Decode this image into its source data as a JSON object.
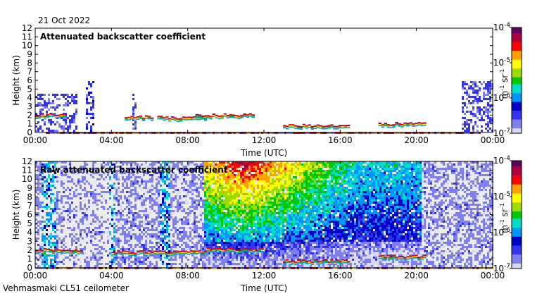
{
  "date": "21 Oct 2022",
  "footer": "Vehmasmaki CL51 ceilometer",
  "colors": {
    "scale": [
      "#ececec",
      "#d8d8f0",
      "#7f7ff2",
      "#3333e8",
      "#0000c8",
      "#0095ff",
      "#00ddc8",
      "#00c800",
      "#9cdc00",
      "#ffff00",
      "#ffa000",
      "#ff0000",
      "#b0003c",
      "#600060"
    ],
    "axis": "#000000"
  },
  "chart_data": [
    {
      "type": "heatmap",
      "title": "Attenuated backscatter coefficient",
      "xlabel": "Time (UTC)",
      "ylabel": "Height (km)",
      "xlim": [
        0,
        24
      ],
      "ylim": [
        0,
        12
      ],
      "x_ticks": [
        "00:00",
        "04:00",
        "08:00",
        "12:00",
        "16:00",
        "20:00",
        "00:00"
      ],
      "y_ticks": [
        "0",
        "1",
        "2",
        "3",
        "4",
        "5",
        "6",
        "7",
        "8",
        "9",
        "10",
        "11",
        "12"
      ],
      "colorbar": {
        "label_base": "m",
        "label_exp1": "-1",
        "label_mid": " sr",
        "label_exp2": "-1",
        "scale": "log",
        "range": [
          1e-07,
          0.0001
        ],
        "tick_bases": [
          "10",
          "10",
          "10",
          "10"
        ],
        "tick_exps": [
          "-7",
          "-6",
          "-5",
          "-4"
        ]
      },
      "features": [
        {
          "name": "cloud layer",
          "t_start": 0.0,
          "t_end": 1.6,
          "height_km": 1.9
        },
        {
          "name": "cloud layer",
          "t_start": 4.7,
          "t_end": 6.2,
          "height_km": 1.7
        },
        {
          "name": "cloud layer",
          "t_start": 6.4,
          "t_end": 9.0,
          "height_km": 1.6
        },
        {
          "name": "cloud layer",
          "t_start": 8.4,
          "t_end": 11.5,
          "height_km": 1.9
        },
        {
          "name": "cloud layer",
          "t_start": 13.0,
          "t_end": 16.5,
          "height_km": 0.7
        },
        {
          "name": "cloud layer",
          "t_start": 18.0,
          "t_end": 20.5,
          "height_km": 0.9
        }
      ]
    },
    {
      "type": "heatmap",
      "title": "Raw attenuated backscatter coefficient",
      "xlabel": "Time (UTC)",
      "ylabel": "Height (km)",
      "xlim": [
        0,
        24
      ],
      "ylim": [
        0,
        12
      ],
      "x_ticks": [
        "00:00",
        "04:00",
        "08:00",
        "12:00",
        "16:00",
        "20:00",
        "00:00"
      ],
      "y_ticks": [
        "0",
        "1",
        "2",
        "3",
        "4",
        "5",
        "6",
        "7",
        "8",
        "9",
        "10",
        "11",
        "12"
      ],
      "colorbar": {
        "label_base": "m",
        "label_exp1": "-1",
        "label_mid": " sr",
        "label_exp2": "-1",
        "scale": "log",
        "range": [
          1e-07,
          0.0001
        ],
        "tick_bases": [
          "10",
          "10",
          "10",
          "10"
        ],
        "tick_exps": [
          "-7",
          "-6",
          "-5",
          "-4"
        ]
      },
      "features": [
        {
          "name": "cloud layer",
          "t_start": 0.0,
          "t_end": 2.5,
          "height_km": 1.9
        },
        {
          "name": "cloud layer",
          "t_start": 4.0,
          "t_end": 9.0,
          "height_km": 1.7
        },
        {
          "name": "cloud layer",
          "t_start": 9.0,
          "t_end": 12.0,
          "height_km": 2.0
        },
        {
          "name": "cloud layer",
          "t_start": 13.0,
          "t_end": 16.5,
          "height_km": 0.7
        },
        {
          "name": "cloud layer",
          "t_start": 18.0,
          "t_end": 20.5,
          "height_km": 1.2
        }
      ]
    }
  ]
}
